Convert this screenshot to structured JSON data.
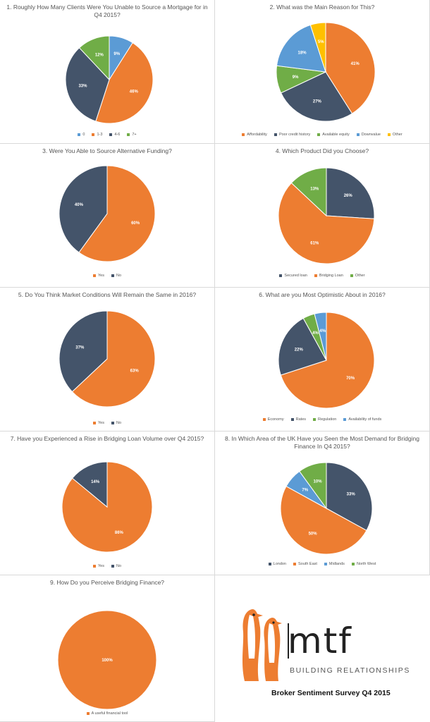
{
  "colors": {
    "orange": "#ED7D31",
    "navy": "#44546A",
    "green": "#70AD47",
    "blue": "#5B9BD5",
    "yellow": "#FFC000",
    "grey": "#A5A5A5"
  },
  "chart_data": [
    {
      "type": "pie",
      "title": "1. Roughly How Many Clients Were You Unable to Source a Mortgage for in Q4 2015?",
      "categories": [
        "0",
        "1-3",
        "4-6",
        "7+"
      ],
      "values": [
        9,
        46,
        33,
        12
      ],
      "labels": [
        "9%",
        "46%",
        "33%",
        "12%"
      ],
      "colors": [
        "#5B9BD5",
        "#ED7D31",
        "#44546A",
        "#70AD47"
      ],
      "legend": "bottom"
    },
    {
      "type": "pie",
      "title": "2. What was the Main Reason for This?",
      "categories": [
        "Affordability",
        "Poor credit history",
        "Available equity",
        "Downvalue",
        "Other"
      ],
      "values": [
        41,
        27,
        9,
        18,
        5
      ],
      "labels": [
        "41%",
        "27%",
        "9%",
        "18%",
        "5%"
      ],
      "colors": [
        "#ED7D31",
        "#44546A",
        "#70AD47",
        "#5B9BD5",
        "#FFC000"
      ],
      "legend": "bottom"
    },
    {
      "type": "pie",
      "title": "3. Were You Able to Source Alternative Funding?",
      "categories": [
        "Yes",
        "No"
      ],
      "values": [
        60,
        40
      ],
      "labels": [
        "60%",
        "40%"
      ],
      "colors": [
        "#ED7D31",
        "#44546A"
      ],
      "legend": "bottom"
    },
    {
      "type": "pie",
      "title": "4. Which Product Did you Choose?",
      "categories": [
        "Secured loan",
        "Bridging Loan",
        "Other"
      ],
      "values": [
        26,
        61,
        13
      ],
      "labels": [
        "26%",
        "61%",
        "13%"
      ],
      "colors": [
        "#44546A",
        "#ED7D31",
        "#70AD47"
      ],
      "legend": "bottom"
    },
    {
      "type": "pie",
      "title": "5. Do You Think Market Conditions Will Remain the Same in 2016?",
      "categories": [
        "Yes",
        "No"
      ],
      "values": [
        63,
        37
      ],
      "labels": [
        "63%",
        "37%"
      ],
      "colors": [
        "#ED7D31",
        "#44546A"
      ],
      "legend": "bottom"
    },
    {
      "type": "pie",
      "title": "6. What are you Most Optimistic About in 2016?",
      "categories": [
        "Economy",
        "Rates",
        "Regulation",
        "Availability of funds"
      ],
      "values": [
        70,
        22,
        4,
        4
      ],
      "labels": [
        "70%",
        "22%",
        "4%",
        "4%"
      ],
      "colors": [
        "#ED7D31",
        "#44546A",
        "#70AD47",
        "#5B9BD5"
      ],
      "legend": "bottom"
    },
    {
      "type": "pie",
      "title": "7. Have you Experienced a Rise in Bridging Loan Volume over Q4 2015?",
      "categories": [
        "Yes",
        "No"
      ],
      "values": [
        86,
        14
      ],
      "labels": [
        "86%",
        "14%"
      ],
      "colors": [
        "#ED7D31",
        "#44546A"
      ],
      "legend": "bottom"
    },
    {
      "type": "pie",
      "title": "8. In Which Area of the UK Have you Seen the Most Demand for Bridging Finance In Q4 2015?",
      "categories": [
        "London",
        "South East",
        "Midlands",
        "North West"
      ],
      "values": [
        33,
        50,
        7,
        10
      ],
      "labels": [
        "33%",
        "50%",
        "7%",
        "10%"
      ],
      "colors": [
        "#44546A",
        "#ED7D31",
        "#5B9BD5",
        "#70AD47"
      ],
      "legend": "bottom"
    },
    {
      "type": "pie",
      "title": "9. How Do you Perceive Bridging Finance?",
      "categories": [
        "A useful financial tool"
      ],
      "values": [
        100
      ],
      "labels": [
        "100%"
      ],
      "colors": [
        "#ED7D31"
      ],
      "legend": "bottom"
    }
  ],
  "legend_colors": [
    [
      "#5B9BD5",
      "#ED7D31",
      "#44546A",
      "#70AD47"
    ],
    [
      "#ED7D31",
      "#44546A",
      "#70AD47",
      "#5B9BD5",
      "#FFC000"
    ],
    [
      "#ED7D31",
      "#44546A"
    ],
    [
      "#44546A",
      "#ED7D31",
      "#70AD47"
    ],
    [
      "#ED7D31",
      "#44546A"
    ],
    [
      "#ED7D31",
      "#44546A",
      "#70AD47",
      "#5B9BD5"
    ],
    [
      "#ED7D31",
      "#44546A"
    ],
    [
      "#44546A",
      "#ED7D31",
      "#5B9BD5",
      "#70AD47"
    ],
    [
      "#ED7D31"
    ]
  ],
  "brand": {
    "logo": "mtf",
    "tagline": "BUILDING RELATIONSHIPS",
    "survey_title": "Broker Sentiment Survey Q4 2015",
    "logo_icon": "penguins-icon"
  }
}
